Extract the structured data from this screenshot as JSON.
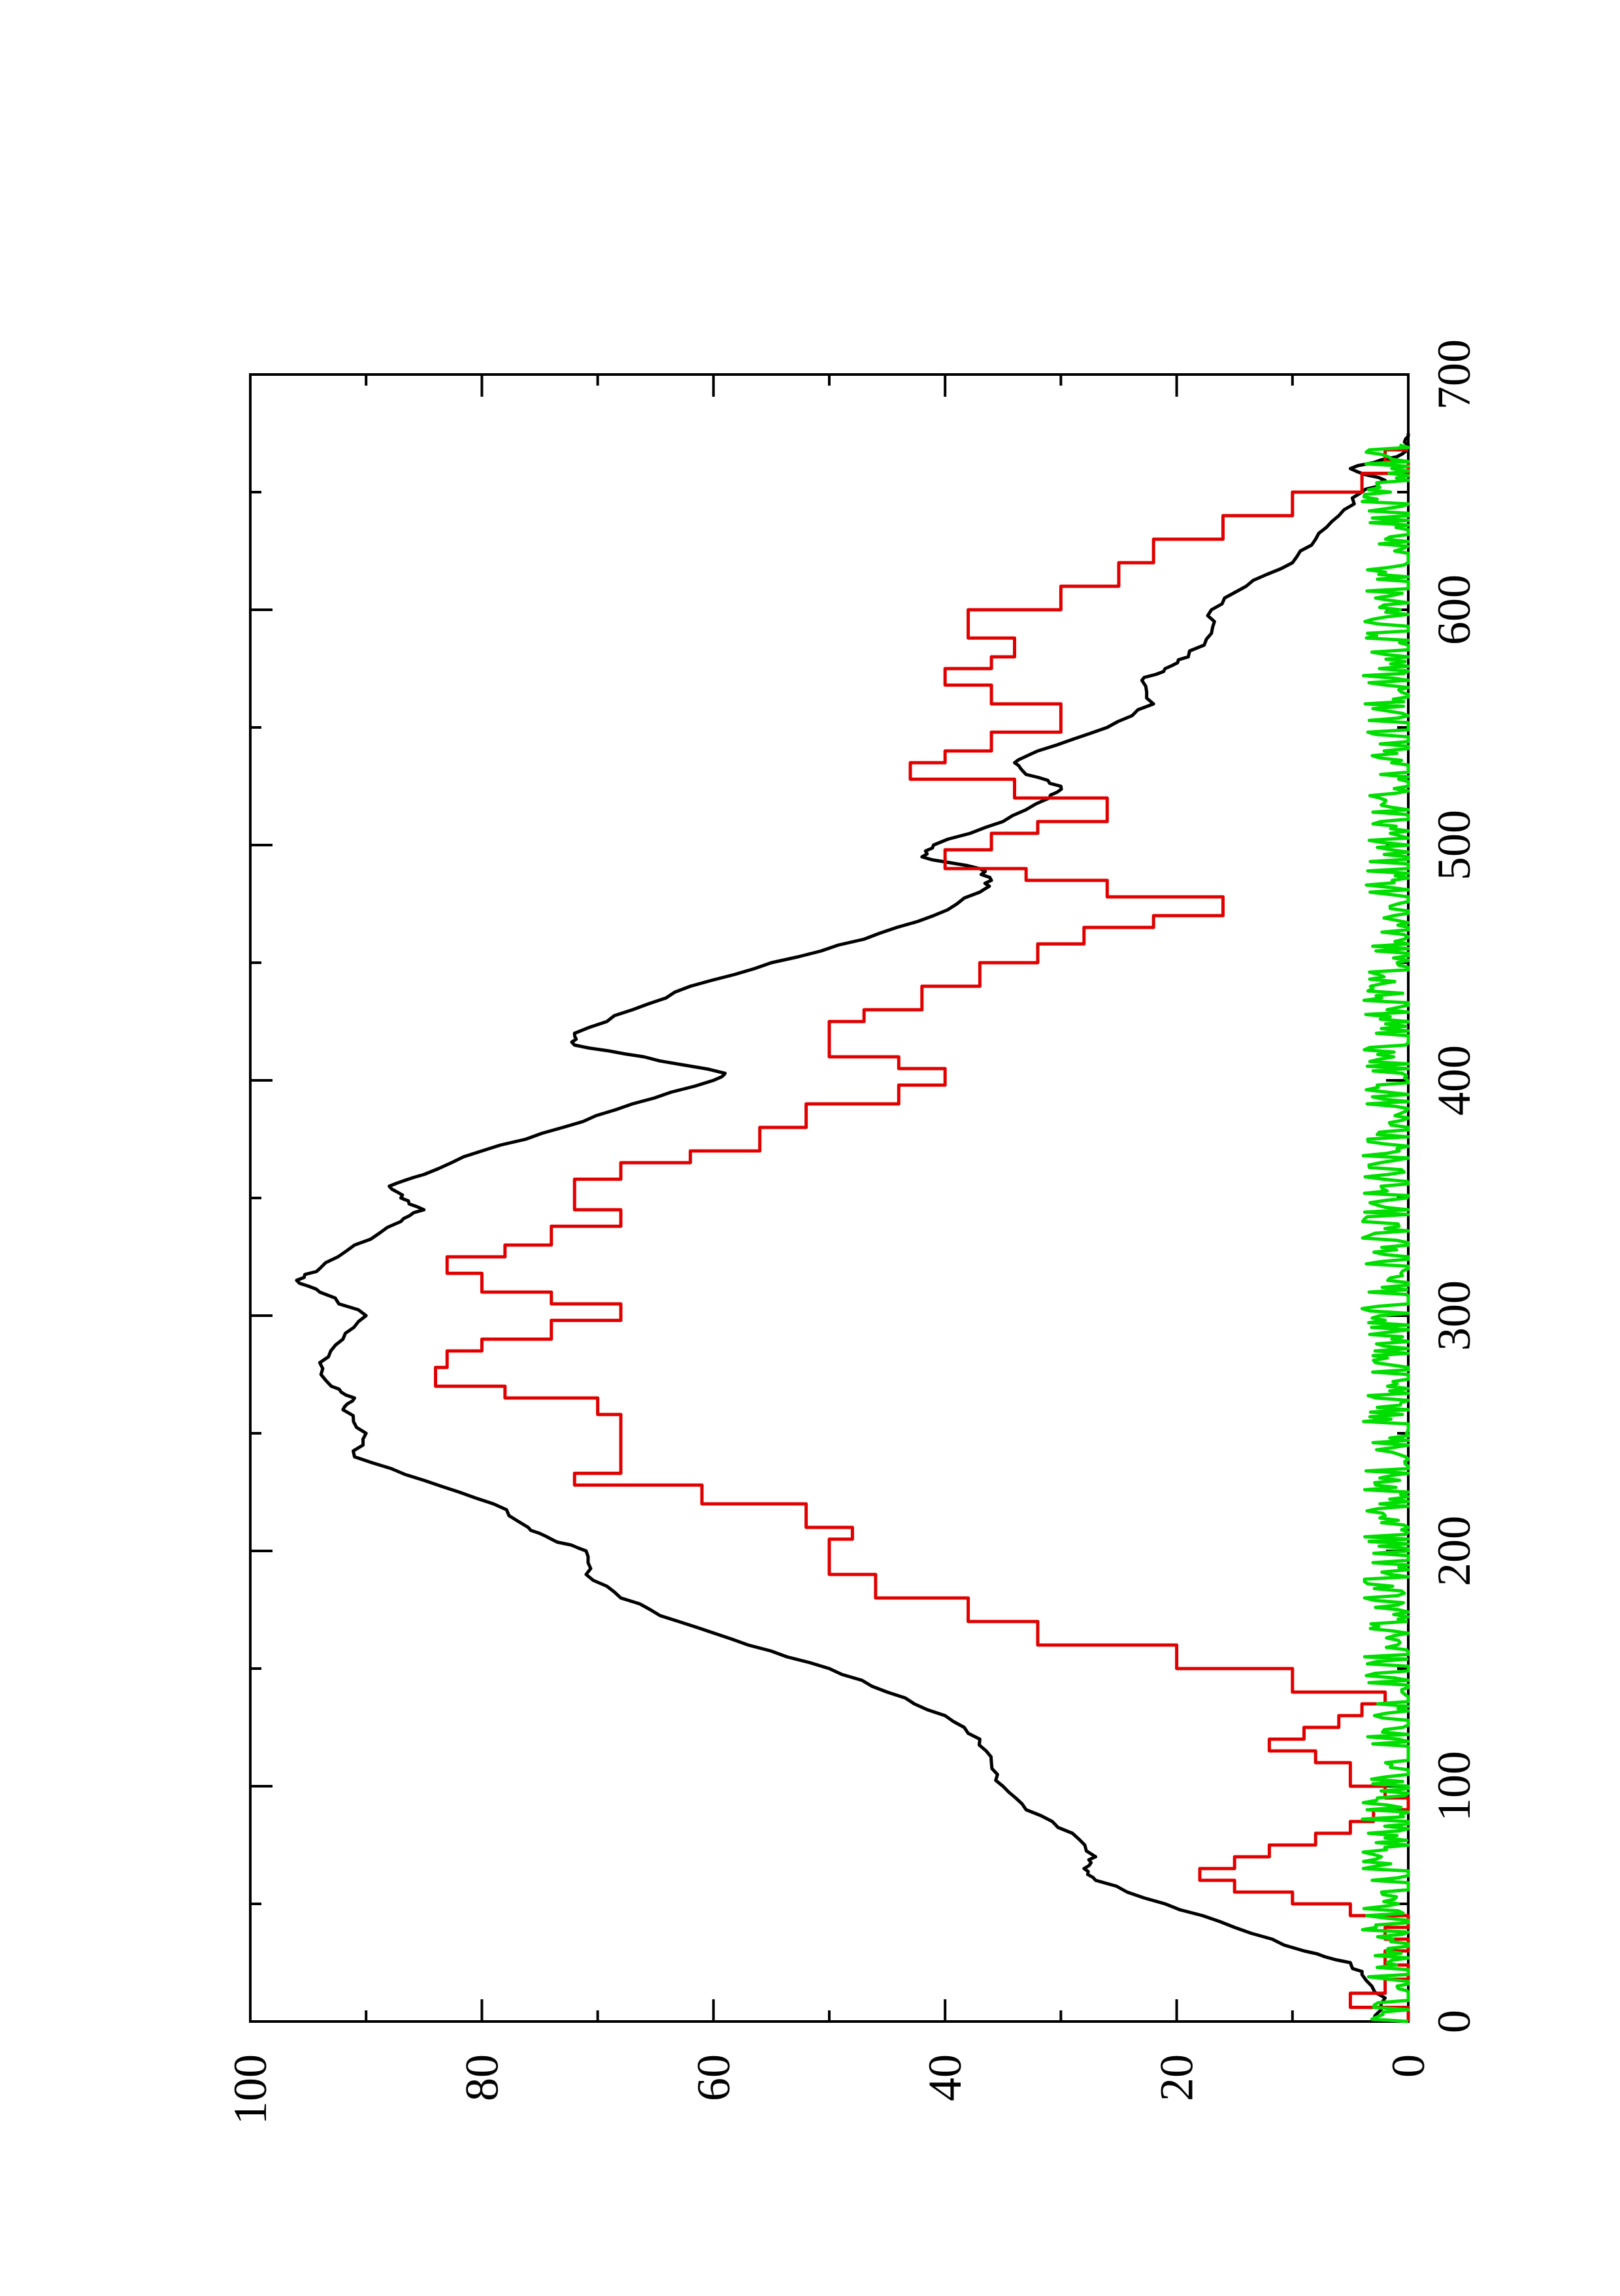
{
  "chart_data": {
    "type": "line",
    "orientation": "rotated-90-counterclockwise",
    "title": "",
    "xlabel": "",
    "ylabel": "",
    "xlim": [
      0,
      700
    ],
    "ylim": [
      0,
      100
    ],
    "x_ticks": [
      0,
      100,
      200,
      300,
      400,
      500,
      600,
      700
    ],
    "y_ticks": [
      0,
      20,
      40,
      60,
      80,
      100
    ],
    "x_minor_ticks": [
      50,
      150,
      250,
      350,
      450,
      550,
      650
    ],
    "y_minor_ticks": [
      10,
      30,
      50,
      70,
      90
    ],
    "grid": false,
    "legend": "none",
    "series": [
      {
        "color": "#000000",
        "shape": "smooth",
        "x": [
          0,
          10,
          20,
          25,
          30,
          40,
          50,
          60,
          65,
          70,
          80,
          90,
          100,
          110,
          120,
          130,
          140,
          150,
          160,
          170,
          180,
          190,
          200,
          205,
          210,
          220,
          230,
          240,
          250,
          260,
          265,
          270,
          280,
          290,
          300,
          310,
          315,
          320,
          330,
          340,
          345,
          350,
          355,
          360,
          370,
          380,
          390,
          400,
          403,
          410,
          415,
          420,
          430,
          440,
          450,
          460,
          470,
          480,
          485,
          490,
          495,
          500,
          510,
          520,
          525,
          530,
          535,
          540,
          550,
          560,
          570,
          575,
          580,
          590,
          600,
          610,
          620,
          630,
          640,
          650,
          655,
          660,
          665,
          670,
          675
        ],
        "y": [
          3,
          2,
          4,
          5,
          9,
          15,
          21,
          27,
          28,
          27,
          29,
          33,
          35,
          36,
          37,
          40,
          45,
          50,
          57,
          63,
          68,
          71,
          71,
          74,
          76,
          79,
          85,
          91,
          90,
          92,
          91,
          93,
          94,
          92,
          90,
          94,
          96,
          94,
          91,
          87,
          85,
          87,
          88,
          85,
          80,
          73,
          67,
          60,
          59,
          66,
          72,
          72,
          67,
          62,
          55,
          47,
          41,
          37,
          36,
          37,
          42,
          41,
          35,
          31,
          30,
          33,
          34,
          32,
          26,
          22,
          23,
          21,
          19,
          17,
          17,
          14,
          10,
          8,
          6,
          4,
          2,
          5,
          1,
          0,
          0
        ]
      },
      {
        "color": "#e00000",
        "shape": "step",
        "x": [
          0,
          6,
          12,
          18,
          24,
          30,
          35,
          40,
          45,
          50,
          55,
          60,
          65,
          70,
          75,
          80,
          85,
          90,
          95,
          100,
          105,
          110,
          115,
          120,
          125,
          130,
          135,
          140,
          150,
          160,
          170,
          180,
          190,
          198,
          205,
          210,
          220,
          228,
          233,
          240,
          250,
          258,
          265,
          270,
          278,
          285,
          290,
          298,
          305,
          310,
          318,
          325,
          330,
          338,
          345,
          350,
          358,
          365,
          370,
          380,
          390,
          398,
          405,
          410,
          418,
          425,
          430,
          440,
          450,
          458,
          465,
          470,
          478,
          485,
          490,
          498,
          505,
          510,
          520,
          528,
          535,
          540,
          548,
          555,
          560,
          568,
          575,
          580,
          588,
          595,
          600,
          610,
          620,
          630,
          640,
          650,
          658,
          663,
          668
        ],
        "y": [
          0,
          5,
          2,
          0,
          2,
          0,
          2,
          0,
          5,
          10,
          15,
          18,
          15,
          12,
          8,
          5,
          3,
          0,
          2,
          5,
          5,
          8,
          12,
          9,
          6,
          4,
          2,
          10,
          20,
          32,
          38,
          46,
          50,
          50,
          48,
          52,
          61,
          72,
          68,
          68,
          68,
          70,
          78,
          84,
          83,
          80,
          74,
          68,
          74,
          80,
          83,
          78,
          74,
          68,
          72,
          72,
          68,
          62,
          56,
          52,
          44,
          40,
          44,
          50,
          50,
          47,
          42,
          37,
          32,
          28,
          22,
          16,
          26,
          33,
          40,
          36,
          32,
          26,
          34,
          43,
          40,
          36,
          30,
          30,
          36,
          40,
          36,
          34,
          38,
          38,
          30,
          25,
          22,
          16,
          10,
          4,
          0,
          2,
          0
        ]
      },
      {
        "color": "#00dd00",
        "shape": "noisy",
        "mean_y": 1,
        "amplitude_y": 3,
        "x_start": 0,
        "x_end": 670
      }
    ]
  }
}
